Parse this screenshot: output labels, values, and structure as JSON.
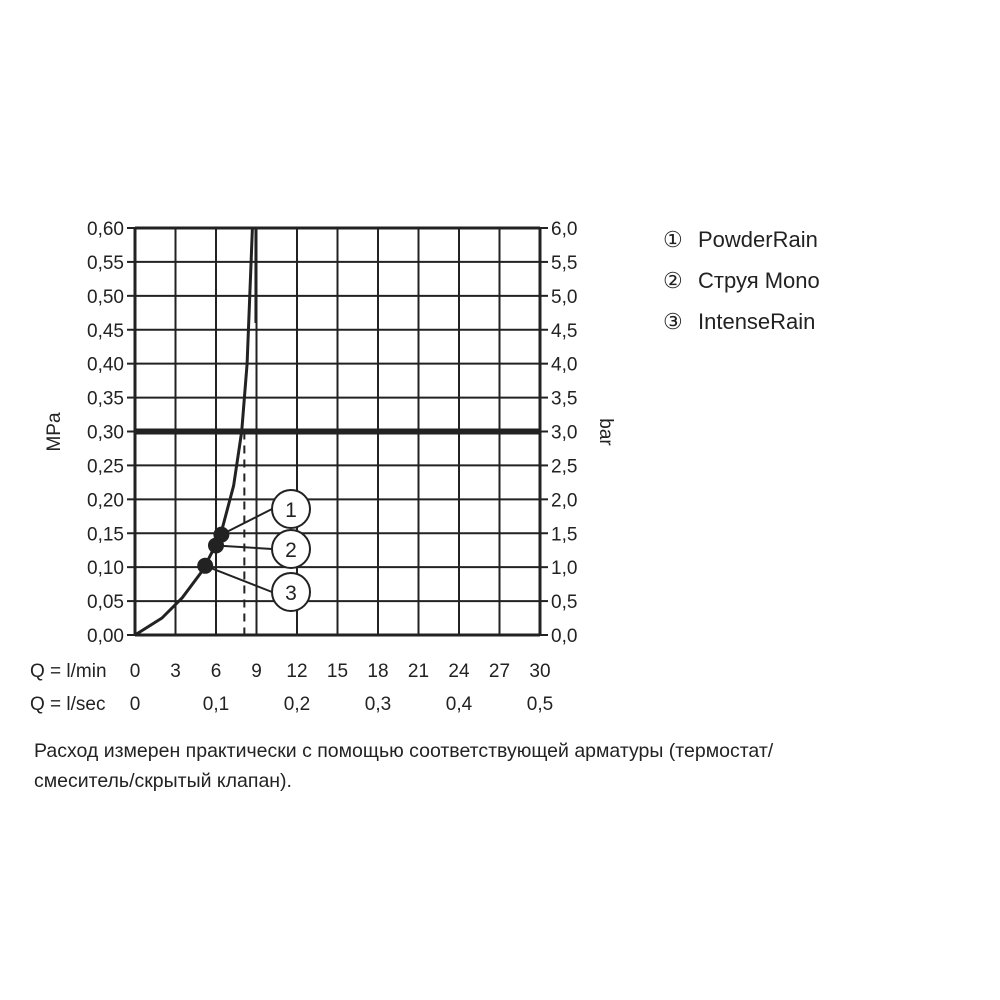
{
  "chart_data": {
    "type": "line",
    "y_left_label": "MPa",
    "y_right_label": "bar",
    "y_left_ticks": [
      "0,00",
      "0,05",
      "0,10",
      "0,15",
      "0,20",
      "0,25",
      "0,30",
      "0,35",
      "0,40",
      "0,45",
      "0,50",
      "0,55",
      "0,60"
    ],
    "y_right_ticks": [
      "0,0",
      "0,5",
      "1,0",
      "1,5",
      "2,0",
      "2,5",
      "3,0",
      "3,5",
      "4,0",
      "4,5",
      "5,0",
      "5,5",
      "6,0"
    ],
    "ylim": [
      0,
      0.6
    ],
    "xlim": [
      0,
      30
    ],
    "x_row1_label": "Q = l/min",
    "x_row1_ticks": [
      "0",
      "3",
      "6",
      "9",
      "12",
      "15",
      "18",
      "21",
      "24",
      "27",
      "30"
    ],
    "x_row2_label": "Q = l/sec",
    "x_row2_ticks": [
      "0",
      "0,1",
      "0,2",
      "0,3",
      "0,4",
      "0,5"
    ],
    "grid": true,
    "curve": {
      "x": [
        0,
        2,
        3.5,
        5,
        6.3,
        7.3,
        7.9,
        8.3,
        8.6,
        8.7
      ],
      "y": [
        0,
        0.025,
        0.055,
        0.095,
        0.145,
        0.22,
        0.3,
        0.4,
        0.55,
        0.6
      ]
    },
    "reference_line": {
      "y": 0.3
    },
    "reference_drop": {
      "x": 8.1,
      "y": 0.3
    },
    "points": [
      {
        "marker": "1",
        "x": 6.4,
        "y": 0.148
      },
      {
        "marker": "2",
        "x": 6.0,
        "y": 0.132
      },
      {
        "marker": "3",
        "x": 5.2,
        "y": 0.102
      }
    ],
    "legend": [
      {
        "marker": "①",
        "label": "PowderRain"
      },
      {
        "marker": "②",
        "label": "Струя Mono"
      },
      {
        "marker": "③",
        "label": "IntenseRain"
      }
    ]
  },
  "note": {
    "line1": "Расход измерен практически с помощью соответствующей арматуры (термостат/",
    "line2": "смеситель/скрытый клапан)."
  },
  "colors": {
    "ink": "#222222",
    "background": "#ffffff"
  }
}
